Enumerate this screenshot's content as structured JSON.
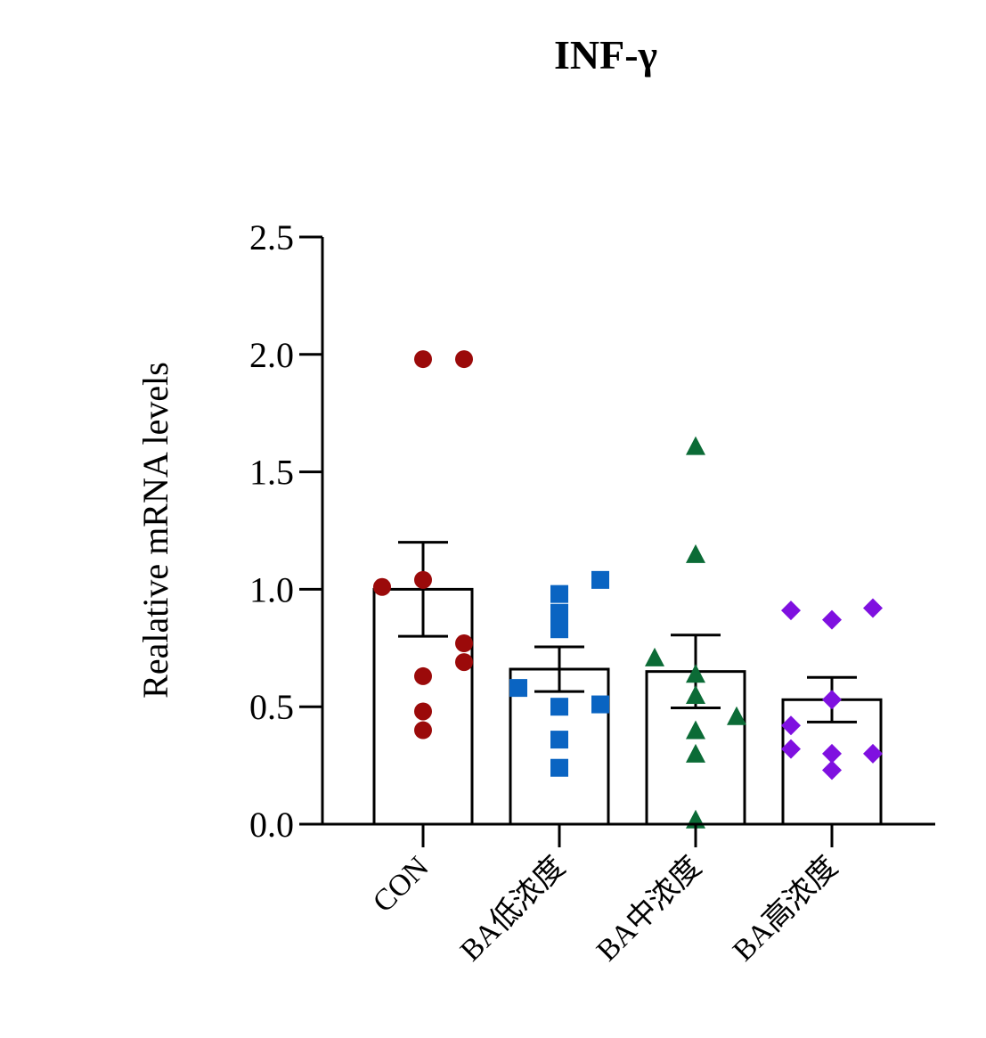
{
  "chart_data": {
    "type": "bar",
    "title": "INF-γ",
    "ylabel": "Realative mRNA levels",
    "xlabel": "",
    "ylim": [
      0,
      2.5
    ],
    "yticks": [
      "0.0",
      "0.5",
      "1.0",
      "1.5",
      "2.0",
      "2.5"
    ],
    "ytick_values": [
      0,
      0.5,
      1.0,
      1.5,
      2.0,
      2.5
    ],
    "categories": [
      "CON",
      "BA低浓度",
      "BA中浓度",
      "BA高浓度"
    ],
    "means": [
      1.0,
      0.66,
      0.65,
      0.53
    ],
    "sem": [
      0.2,
      0.095,
      0.155,
      0.095
    ],
    "error_bars": "SEM",
    "grid": false,
    "legend": "none",
    "series": [
      {
        "category": "CON",
        "marker": "circle",
        "color": "#9b0a0a",
        "points": [
          {
            "offset": -1,
            "y": 1.01
          },
          {
            "offset": 0,
            "y": 1.98
          },
          {
            "offset": 0,
            "y": 1.04
          },
          {
            "offset": 0,
            "y": 0.63
          },
          {
            "offset": 0,
            "y": 0.48
          },
          {
            "offset": 0,
            "y": 0.4
          },
          {
            "offset": 1,
            "y": 1.98
          },
          {
            "offset": 1,
            "y": 0.77
          },
          {
            "offset": 1,
            "y": 0.69
          }
        ]
      },
      {
        "category": "BA低浓度",
        "marker": "square",
        "color": "#0a64c2",
        "points": [
          {
            "offset": -1,
            "y": 0.58
          },
          {
            "offset": 0,
            "y": 0.98
          },
          {
            "offset": 0,
            "y": 0.9
          },
          {
            "offset": 0,
            "y": 0.83
          },
          {
            "offset": 0,
            "y": 0.5
          },
          {
            "offset": 0,
            "y": 0.36
          },
          {
            "offset": 0,
            "y": 0.24
          },
          {
            "offset": 1,
            "y": 1.04
          },
          {
            "offset": 1,
            "y": 0.51
          }
        ]
      },
      {
        "category": "BA中浓度",
        "marker": "triangle",
        "color": "#0b6b36",
        "points": [
          {
            "offset": -1,
            "y": 0.71
          },
          {
            "offset": 0,
            "y": 1.61
          },
          {
            "offset": 0,
            "y": 1.15
          },
          {
            "offset": 0,
            "y": 0.64
          },
          {
            "offset": 0,
            "y": 0.55
          },
          {
            "offset": 0,
            "y": 0.4
          },
          {
            "offset": 0,
            "y": 0.3
          },
          {
            "offset": 0,
            "y": 0.02
          },
          {
            "offset": 1,
            "y": 0.46
          }
        ]
      },
      {
        "category": "BA高浓度",
        "marker": "diamond",
        "color": "#7f10e0",
        "points": [
          {
            "offset": -1,
            "y": 0.91
          },
          {
            "offset": -1,
            "y": 0.42
          },
          {
            "offset": -1,
            "y": 0.32
          },
          {
            "offset": 0,
            "y": 0.87
          },
          {
            "offset": 0,
            "y": 0.53
          },
          {
            "offset": 0,
            "y": 0.3
          },
          {
            "offset": 0,
            "y": 0.23
          },
          {
            "offset": 1,
            "y": 0.92
          },
          {
            "offset": 1,
            "y": 0.3
          }
        ]
      }
    ]
  }
}
